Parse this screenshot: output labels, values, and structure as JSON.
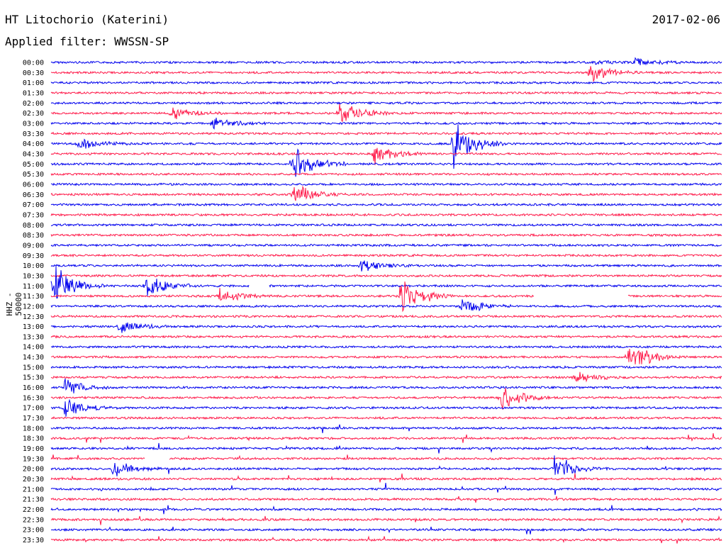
{
  "header": {
    "station": "HT Litochorio (Katerini)",
    "filter": "Applied filter: WWSSN-SP",
    "date": "2017-02-06"
  },
  "colors": {
    "trace_a": "#0000ee",
    "trace_b": "#ff1a4a",
    "tick_text": "#000000"
  },
  "chart_data": {
    "type": "line",
    "title": "HT Litochorio (Katerini)",
    "subtitle": "Applied filter: WWSSN-SP",
    "date": "2017-02-06",
    "ylabel": "HHZ - 50000",
    "xlabel": "",
    "row_interval_minutes": 30,
    "y_tick_labels": [
      "00:00",
      "00:30",
      "01:00",
      "01:30",
      "02:00",
      "02:30",
      "03:00",
      "03:30",
      "04:00",
      "04:30",
      "05:00",
      "05:30",
      "06:00",
      "06:30",
      "07:00",
      "07:30",
      "08:00",
      "08:30",
      "09:00",
      "09:30",
      "10:00",
      "10:30",
      "11:00",
      "11:30",
      "12:00",
      "12:30",
      "13:00",
      "13:30",
      "14:00",
      "14:30",
      "15:00",
      "15:30",
      "16:00",
      "16:30",
      "17:00",
      "17:30",
      "18:00",
      "18:30",
      "19:00",
      "19:30",
      "20:00",
      "20:30",
      "21:00",
      "21:30",
      "22:00",
      "22:30",
      "23:00",
      "23:30"
    ],
    "series": [
      {
        "values": [
          0.02,
          0.02,
          0.02,
          0.02,
          0.02,
          0.02,
          0.02,
          0.02,
          0.02,
          0.02,
          0.02,
          0.02,
          0.02,
          0.02,
          0.02,
          0.02,
          0.02,
          0.02,
          0.02,
          0.02,
          0.02,
          0.02,
          0.02,
          0.02
        ]
      },
      {
        "values": [
          0.02,
          0.02,
          0.02,
          0.02,
          0.02,
          0.02,
          0.02,
          0.02,
          0.02,
          0.02,
          0.02,
          0.02,
          0.02,
          0.02,
          0.02,
          0.02,
          0.02,
          0.02,
          0.02,
          0.02,
          0.02,
          0.02,
          0.02,
          0.02
        ]
      }
    ],
    "events": [
      {
        "row": 0,
        "x": 0.81,
        "amp": 0.08
      },
      {
        "row": 0,
        "x": 0.87,
        "amp": 0.2
      },
      {
        "row": 1,
        "x": 0.8,
        "amp": 0.5
      },
      {
        "row": 5,
        "x": 0.18,
        "amp": 0.3
      },
      {
        "row": 5,
        "x": 0.43,
        "amp": 0.5
      },
      {
        "row": 6,
        "x": 0.24,
        "amp": 0.3
      },
      {
        "row": 8,
        "x": 0.04,
        "amp": 0.3
      },
      {
        "row": 8,
        "x": 0.6,
        "amp": 1
      },
      {
        "row": 9,
        "x": 0.48,
        "amp": 0.5
      },
      {
        "row": 10,
        "x": 0.36,
        "amp": 1
      },
      {
        "row": 13,
        "x": 0.36,
        "amp": 0.5
      },
      {
        "row": 20,
        "x": 0.46,
        "amp": 0.3
      },
      {
        "row": 22,
        "x": 0.0,
        "amp": 1
      },
      {
        "row": 22,
        "x": 0.14,
        "amp": 0.7
      },
      {
        "row": 23,
        "x": 0.25,
        "amp": 0.4
      },
      {
        "row": 23,
        "x": 0.52,
        "amp": 1
      },
      {
        "row": 24,
        "x": 0.61,
        "amp": 0.5
      },
      {
        "row": 26,
        "x": 0.1,
        "amp": 0.3
      },
      {
        "row": 29,
        "x": 0.86,
        "amp": 0.8
      },
      {
        "row": 31,
        "x": 0.78,
        "amp": 0.3
      },
      {
        "row": 32,
        "x": 0.02,
        "amp": 0.4
      },
      {
        "row": 33,
        "x": 0.67,
        "amp": 0.6
      },
      {
        "row": 34,
        "x": 0.02,
        "amp": 0.4
      },
      {
        "row": 40,
        "x": 0.75,
        "amp": 0.6
      },
      {
        "row": 40,
        "x": 0.09,
        "amp": 0.4
      }
    ],
    "gaps": [
      {
        "row": 22,
        "x0": 0.295,
        "x1": 0.325
      },
      {
        "row": 23,
        "x0": 0.72,
        "x1": 0.86
      },
      {
        "row": 39,
        "x0": 0.14,
        "x1": 0.176
      }
    ]
  }
}
